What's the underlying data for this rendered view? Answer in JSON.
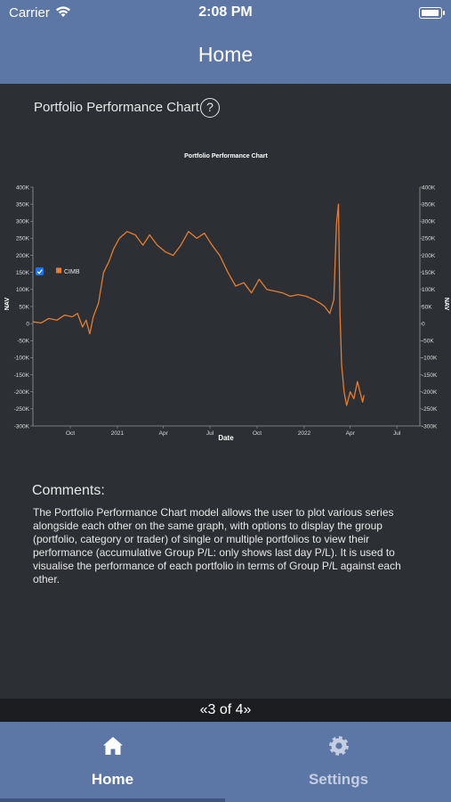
{
  "status": {
    "carrier": "Carrier",
    "time": "2:08 PM",
    "battery_level": 0.95
  },
  "nav": {
    "title": "Home"
  },
  "section": {
    "title": "Portfolio Performance Chart",
    "help_label": "?"
  },
  "chart_data": {
    "type": "line",
    "title": "Portfolio Performance Chart",
    "xlabel": "Date",
    "ylabel": "NAV",
    "y2label": "NAV",
    "ylim": [
      -300000,
      400000
    ],
    "yticks": [
      "400K",
      "350K",
      "300K",
      "250K",
      "200K",
      "150K",
      "100K",
      "50K",
      "0",
      "-50K",
      "-100K",
      "-150K",
      "-200K",
      "-250K",
      "-300K"
    ],
    "xticks": [
      "Oct",
      "2021",
      "Apr",
      "Jul",
      "Oct",
      "2022",
      "Apr",
      "Jul"
    ],
    "xlim": [
      "2020-07-20",
      "2022-08-15"
    ],
    "legend": "top-left",
    "grid": false,
    "series": [
      {
        "name": "CIMB",
        "checked": true,
        "color": "#e87d2f",
        "points": [
          [
            "2020-07-20",
            5000
          ],
          [
            "2020-08-05",
            2000
          ],
          [
            "2020-08-20",
            15000
          ],
          [
            "2020-09-05",
            10000
          ],
          [
            "2020-09-20",
            25000
          ],
          [
            "2020-10-05",
            20000
          ],
          [
            "2020-10-15",
            30000
          ],
          [
            "2020-10-25",
            -10000
          ],
          [
            "2020-11-01",
            10000
          ],
          [
            "2020-11-08",
            -30000
          ],
          [
            "2020-11-15",
            20000
          ],
          [
            "2020-11-25",
            60000
          ],
          [
            "2020-12-05",
            150000
          ],
          [
            "2020-12-15",
            180000
          ],
          [
            "2020-12-25",
            220000
          ],
          [
            "2021-01-05",
            250000
          ],
          [
            "2021-01-20",
            270000
          ],
          [
            "2021-02-05",
            260000
          ],
          [
            "2021-02-20",
            230000
          ],
          [
            "2021-03-05",
            260000
          ],
          [
            "2021-03-20",
            230000
          ],
          [
            "2021-04-05",
            210000
          ],
          [
            "2021-04-20",
            200000
          ],
          [
            "2021-05-05",
            230000
          ],
          [
            "2021-05-20",
            270000
          ],
          [
            "2021-06-05",
            250000
          ],
          [
            "2021-06-20",
            265000
          ],
          [
            "2021-07-05",
            230000
          ],
          [
            "2021-07-20",
            200000
          ],
          [
            "2021-08-05",
            150000
          ],
          [
            "2021-08-20",
            110000
          ],
          [
            "2021-09-05",
            120000
          ],
          [
            "2021-09-20",
            90000
          ],
          [
            "2021-10-05",
            130000
          ],
          [
            "2021-10-20",
            100000
          ],
          [
            "2021-11-05",
            95000
          ],
          [
            "2021-11-20",
            90000
          ],
          [
            "2021-12-05",
            80000
          ],
          [
            "2021-12-20",
            85000
          ],
          [
            "2022-01-05",
            80000
          ],
          [
            "2022-01-20",
            70000
          ],
          [
            "2022-02-01",
            60000
          ],
          [
            "2022-02-10",
            50000
          ],
          [
            "2022-02-20",
            30000
          ],
          [
            "2022-02-28",
            70000
          ],
          [
            "2022-03-05",
            290000
          ],
          [
            "2022-03-09",
            350000
          ],
          [
            "2022-03-12",
            30000
          ],
          [
            "2022-03-15",
            -120000
          ],
          [
            "2022-03-20",
            -200000
          ],
          [
            "2022-03-25",
            -240000
          ],
          [
            "2022-04-01",
            -200000
          ],
          [
            "2022-04-08",
            -220000
          ],
          [
            "2022-04-15",
            -170000
          ],
          [
            "2022-04-20",
            -200000
          ],
          [
            "2022-04-25",
            -230000
          ],
          [
            "2022-04-28",
            -210000
          ]
        ]
      }
    ]
  },
  "comments": {
    "title": "Comments:",
    "body": "The Portfolio Performance Chart model allows the user to plot various series alongside each other on the same graph, with options to display the group (portfolio, category or trader) of single or multiple portfolios to view their performance (accumulative Group P/L: only shows last day P/L). It is used to visualise the performance of each portfolio in terms of Group P/L against each other."
  },
  "pager": {
    "text": "«3 of 4»"
  },
  "tabs": [
    {
      "label": "Home",
      "icon": "home-icon",
      "active": true
    },
    {
      "label": "Settings",
      "icon": "gear-icon",
      "active": false
    }
  ]
}
